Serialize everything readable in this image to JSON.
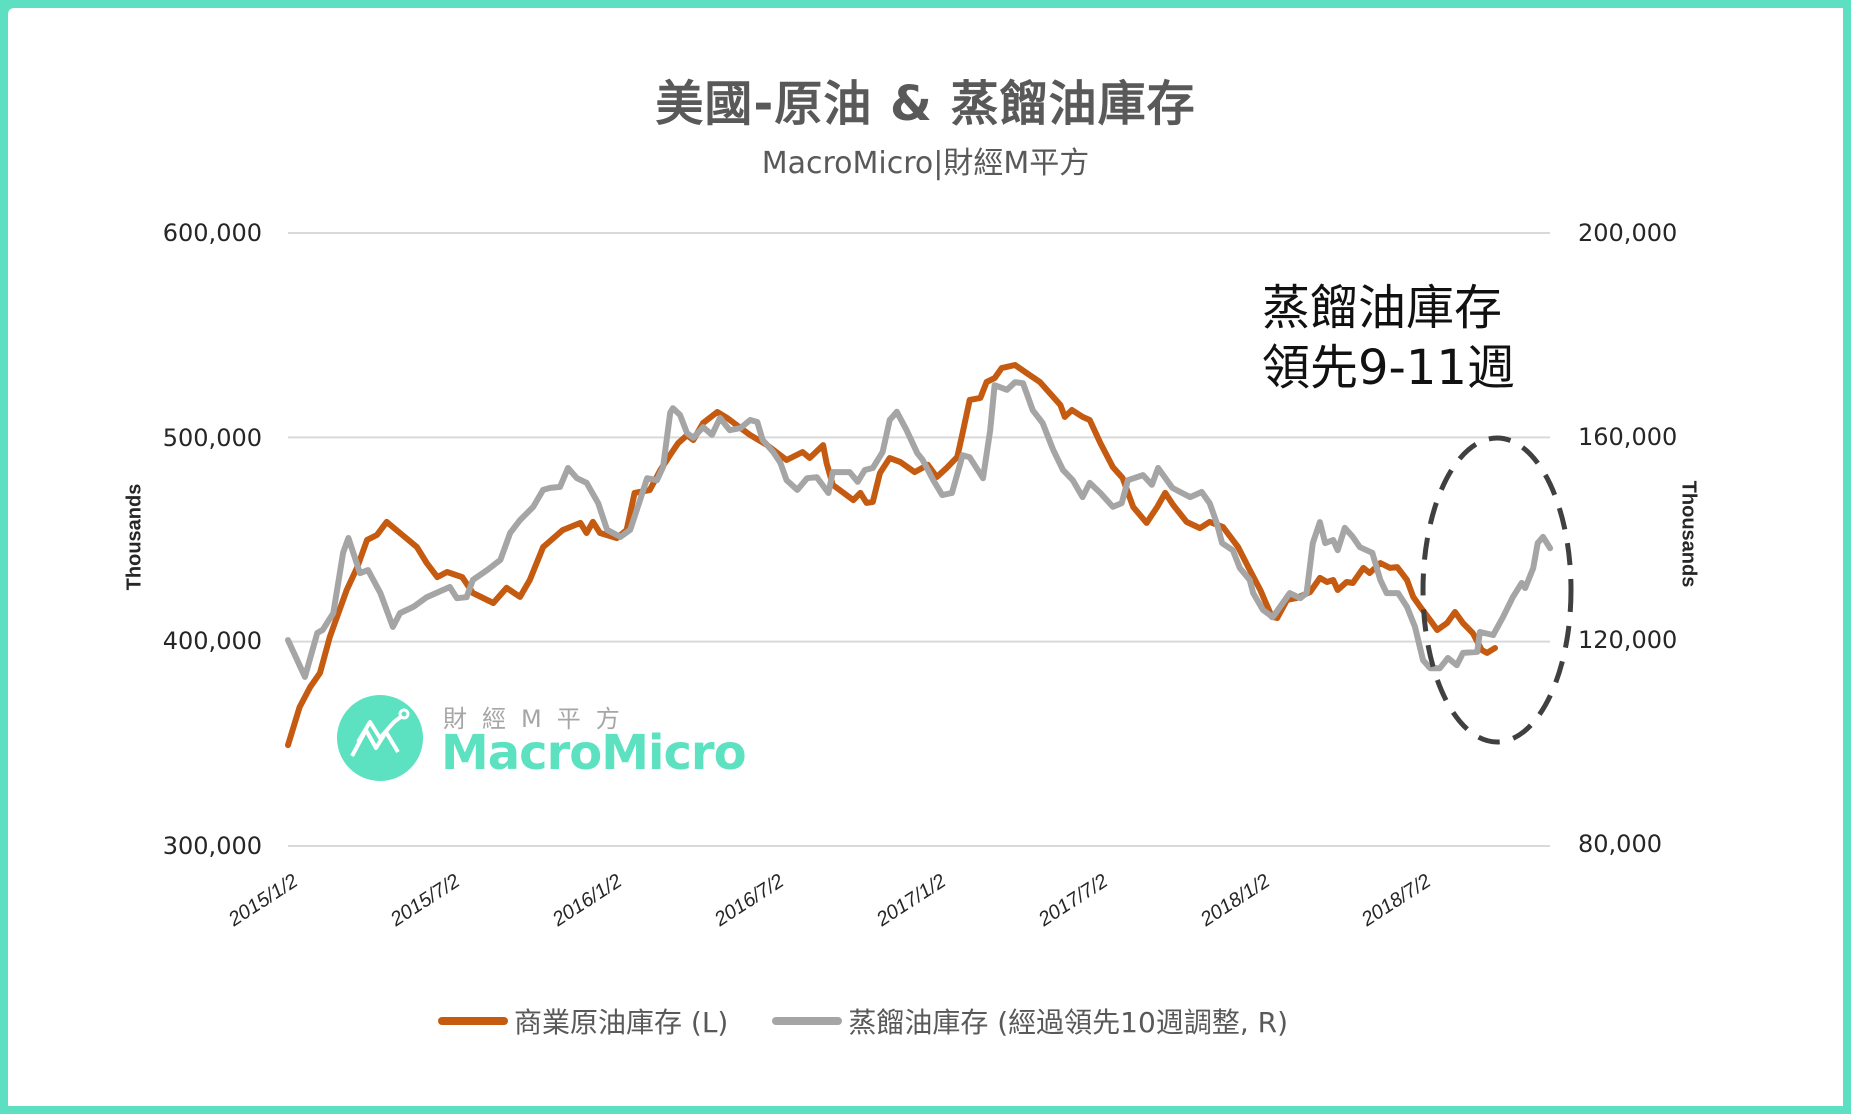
{
  "header": {
    "title": "美國-原油 & 蒸餾油庫存",
    "subtitle": "MacroMicro|財經M平方"
  },
  "axes": {
    "left": {
      "title": "Thousands",
      "ticks": [
        "600,000",
        "500,000",
        "400,000",
        "300,000"
      ]
    },
    "right": {
      "title": "Thousands",
      "ticks": [
        "200,000",
        "160,000",
        "120,000",
        "80,000"
      ]
    },
    "x": {
      "ticks": [
        "2015/1/2",
        "2015/7/2",
        "2016/1/2",
        "2016/7/2",
        "2017/1/2",
        "2017/7/2",
        "2018/1/2",
        "2018/7/2"
      ]
    }
  },
  "annotation": {
    "line1": "蒸餾油庫存",
    "line2": "領先9-11週"
  },
  "watermark": {
    "cn": "財經M平方",
    "en": "MacroMicro"
  },
  "legend": {
    "items": [
      {
        "label": "商業原油庫存 (L)",
        "color": "#c55a11"
      },
      {
        "label": "蒸餾油庫存 (經過領先10週調整, R)",
        "color": "#a5a5a5"
      }
    ]
  },
  "colors": {
    "crude": "#c55a11",
    "distillate": "#a5a5a5",
    "brand": "#5ce1c1",
    "grid": "#d9d9d9"
  },
  "chart_data": {
    "type": "line",
    "title": "美國-原油 & 蒸餾油庫存",
    "subtitle": "MacroMicro|財經M平方",
    "xlabel": "",
    "ylabel": "Thousands",
    "ylabel_right": "Thousands",
    "ylim": [
      300000,
      600000
    ],
    "ylim_right": [
      80000,
      200000
    ],
    "grid": true,
    "legend_position": "bottom",
    "x_origin": "2015/1/2",
    "x_unit": "days since origin",
    "categories": [
      "2015/1/2",
      "2015/7/2",
      "2016/1/2",
      "2016/7/2",
      "2017/1/2",
      "2017/7/2",
      "2018/1/2",
      "2018/7/2"
    ],
    "annotations": [
      "蒸餾油庫存 領先9-11週",
      "dashed ellipse around 2018/7–2018/11"
    ],
    "series": [
      {
        "name": "商業原油庫存 (L)",
        "axis": "left",
        "points": [
          [
            0,
            349400
          ],
          [
            13,
            368000
          ],
          [
            25,
            377800
          ],
          [
            36,
            384700
          ],
          [
            47,
            402300
          ],
          [
            66,
            425300
          ],
          [
            78,
            436500
          ],
          [
            89,
            449800
          ],
          [
            100,
            452200
          ],
          [
            111,
            458600
          ],
          [
            126,
            453200
          ],
          [
            145,
            446300
          ],
          [
            156,
            438500
          ],
          [
            168,
            431600
          ],
          [
            179,
            434100
          ],
          [
            196,
            431600
          ],
          [
            208,
            423800
          ],
          [
            231,
            418900
          ],
          [
            246,
            426300
          ],
          [
            261,
            421900
          ],
          [
            272,
            430200
          ],
          [
            287,
            446300
          ],
          [
            309,
            454600
          ],
          [
            329,
            458100
          ],
          [
            336,
            453200
          ],
          [
            343,
            458600
          ],
          [
            351,
            453200
          ],
          [
            370,
            450700
          ],
          [
            381,
            454600
          ],
          [
            390,
            472800
          ],
          [
            407,
            474200
          ],
          [
            419,
            484000
          ],
          [
            430,
            491400
          ],
          [
            439,
            497200
          ],
          [
            449,
            501100
          ],
          [
            456,
            498700
          ],
          [
            467,
            507000
          ],
          [
            483,
            512400
          ],
          [
            494,
            509500
          ],
          [
            509,
            504600
          ],
          [
            520,
            501100
          ],
          [
            539,
            496200
          ],
          [
            561,
            488900
          ],
          [
            579,
            492800
          ],
          [
            587,
            489900
          ],
          [
            602,
            496200
          ],
          [
            606,
            487400
          ],
          [
            613,
            476700
          ],
          [
            636,
            469300
          ],
          [
            644,
            472800
          ],
          [
            651,
            467900
          ],
          [
            658,
            468400
          ],
          [
            666,
            482500
          ],
          [
            677,
            489900
          ],
          [
            689,
            487900
          ],
          [
            705,
            483000
          ],
          [
            720,
            486500
          ],
          [
            730,
            480600
          ],
          [
            741,
            485000
          ],
          [
            753,
            490400
          ],
          [
            759,
            502100
          ],
          [
            767,
            518300
          ],
          [
            779,
            519300
          ],
          [
            786,
            527100
          ],
          [
            795,
            529000
          ],
          [
            803,
            533900
          ],
          [
            818,
            535400
          ],
          [
            831,
            531500
          ],
          [
            846,
            527100
          ],
          [
            857,
            521700
          ],
          [
            869,
            515800
          ],
          [
            874,
            510000
          ],
          [
            882,
            513400
          ],
          [
            894,
            510000
          ],
          [
            902,
            508500
          ],
          [
            914,
            497200
          ],
          [
            928,
            485500
          ],
          [
            939,
            480100
          ],
          [
            951,
            465900
          ],
          [
            966,
            458100
          ],
          [
            978,
            465900
          ],
          [
            987,
            472800
          ],
          [
            996,
            466900
          ],
          [
            1011,
            458600
          ],
          [
            1026,
            455600
          ],
          [
            1037,
            458600
          ],
          [
            1052,
            456100
          ],
          [
            1069,
            446300
          ],
          [
            1082,
            435100
          ],
          [
            1094,
            425300
          ],
          [
            1107,
            412100
          ],
          [
            1113,
            411600
          ],
          [
            1124,
            420400
          ],
          [
            1135,
            421400
          ],
          [
            1150,
            424300
          ],
          [
            1161,
            431200
          ],
          [
            1169,
            429200
          ],
          [
            1176,
            430200
          ],
          [
            1181,
            425300
          ],
          [
            1191,
            429200
          ],
          [
            1198,
            428700
          ],
          [
            1210,
            436100
          ],
          [
            1217,
            433600
          ],
          [
            1229,
            438500
          ],
          [
            1240,
            436100
          ],
          [
            1248,
            436500
          ],
          [
            1259,
            430200
          ],
          [
            1266,
            421900
          ],
          [
            1274,
            417000
          ],
          [
            1285,
            410600
          ],
          [
            1293,
            405700
          ],
          [
            1304,
            409100
          ],
          [
            1313,
            414500
          ],
          [
            1322,
            409100
          ],
          [
            1333,
            404200
          ],
          [
            1343,
            395900
          ],
          [
            1349,
            394500
          ],
          [
            1358,
            396900
          ]
        ]
      },
      {
        "name": "蒸餾油庫存 (經過領先10週調整, R)",
        "axis": "right",
        "points": [
          [
            0,
            120300
          ],
          [
            19,
            113100
          ],
          [
            33,
            121700
          ],
          [
            39,
            122300
          ],
          [
            51,
            125600
          ],
          [
            62,
            137400
          ],
          [
            68,
            140300
          ],
          [
            81,
            133400
          ],
          [
            90,
            134000
          ],
          [
            104,
            129500
          ],
          [
            118,
            122900
          ],
          [
            126,
            125600
          ],
          [
            141,
            126800
          ],
          [
            156,
            128700
          ],
          [
            174,
            130100
          ],
          [
            182,
            130700
          ],
          [
            190,
            128500
          ],
          [
            201,
            128700
          ],
          [
            208,
            132100
          ],
          [
            224,
            134000
          ],
          [
            239,
            136000
          ],
          [
            250,
            141300
          ],
          [
            261,
            143800
          ],
          [
            276,
            146400
          ],
          [
            287,
            149700
          ],
          [
            295,
            150100
          ],
          [
            306,
            150300
          ],
          [
            315,
            154000
          ],
          [
            325,
            152000
          ],
          [
            336,
            151100
          ],
          [
            349,
            147100
          ],
          [
            359,
            141900
          ],
          [
            374,
            140500
          ],
          [
            385,
            141900
          ],
          [
            396,
            147700
          ],
          [
            404,
            152000
          ],
          [
            415,
            151600
          ],
          [
            422,
            154200
          ],
          [
            430,
            164800
          ],
          [
            433,
            165700
          ],
          [
            441,
            164400
          ],
          [
            449,
            160800
          ],
          [
            456,
            159900
          ],
          [
            467,
            162000
          ],
          [
            477,
            160500
          ],
          [
            486,
            163800
          ],
          [
            497,
            161400
          ],
          [
            509,
            161800
          ],
          [
            520,
            163400
          ],
          [
            528,
            163000
          ],
          [
            534,
            159500
          ],
          [
            546,
            157100
          ],
          [
            554,
            155000
          ],
          [
            561,
            151600
          ],
          [
            573,
            149700
          ],
          [
            584,
            152000
          ],
          [
            595,
            152200
          ],
          [
            608,
            149100
          ],
          [
            613,
            153200
          ],
          [
            632,
            153200
          ],
          [
            641,
            151300
          ],
          [
            649,
            153600
          ],
          [
            658,
            154000
          ],
          [
            669,
            157100
          ],
          [
            677,
            163400
          ],
          [
            685,
            165000
          ],
          [
            696,
            161400
          ],
          [
            708,
            156900
          ],
          [
            714,
            155600
          ],
          [
            726,
            151600
          ],
          [
            736,
            148700
          ],
          [
            747,
            149100
          ],
          [
            759,
            156500
          ],
          [
            767,
            156100
          ],
          [
            782,
            152000
          ],
          [
            790,
            161400
          ],
          [
            795,
            170200
          ],
          [
            809,
            169300
          ],
          [
            818,
            170800
          ],
          [
            827,
            170600
          ],
          [
            838,
            165300
          ],
          [
            849,
            162800
          ],
          [
            861,
            157500
          ],
          [
            872,
            153600
          ],
          [
            883,
            151600
          ],
          [
            894,
            148300
          ],
          [
            902,
            151100
          ],
          [
            914,
            149100
          ],
          [
            928,
            146400
          ],
          [
            938,
            147100
          ],
          [
            945,
            151600
          ],
          [
            962,
            152600
          ],
          [
            972,
            150700
          ],
          [
            979,
            154000
          ],
          [
            995,
            150100
          ],
          [
            1006,
            149100
          ],
          [
            1015,
            148300
          ],
          [
            1028,
            149300
          ],
          [
            1037,
            147100
          ],
          [
            1045,
            143200
          ],
          [
            1051,
            139300
          ],
          [
            1063,
            137900
          ],
          [
            1071,
            134400
          ],
          [
            1082,
            132100
          ],
          [
            1086,
            129500
          ],
          [
            1097,
            126200
          ],
          [
            1108,
            124800
          ],
          [
            1127,
            129500
          ],
          [
            1139,
            128500
          ],
          [
            1146,
            129500
          ],
          [
            1153,
            139300
          ],
          [
            1161,
            143400
          ],
          [
            1167,
            139300
          ],
          [
            1176,
            139900
          ],
          [
            1181,
            137900
          ],
          [
            1189,
            142300
          ],
          [
            1198,
            140500
          ],
          [
            1206,
            138500
          ],
          [
            1220,
            137400
          ],
          [
            1229,
            132100
          ],
          [
            1236,
            129500
          ],
          [
            1249,
            129500
          ],
          [
            1259,
            126800
          ],
          [
            1268,
            122900
          ],
          [
            1277,
            116400
          ],
          [
            1285,
            114800
          ],
          [
            1296,
            114800
          ],
          [
            1305,
            116800
          ],
          [
            1315,
            115400
          ],
          [
            1322,
            117800
          ],
          [
            1338,
            118000
          ],
          [
            1341,
            121900
          ],
          [
            1356,
            121300
          ],
          [
            1367,
            124800
          ],
          [
            1378,
            128700
          ],
          [
            1388,
            131500
          ],
          [
            1392,
            130500
          ],
          [
            1401,
            134400
          ],
          [
            1406,
            139300
          ],
          [
            1412,
            140500
          ],
          [
            1420,
            138300
          ]
        ]
      }
    ]
  }
}
